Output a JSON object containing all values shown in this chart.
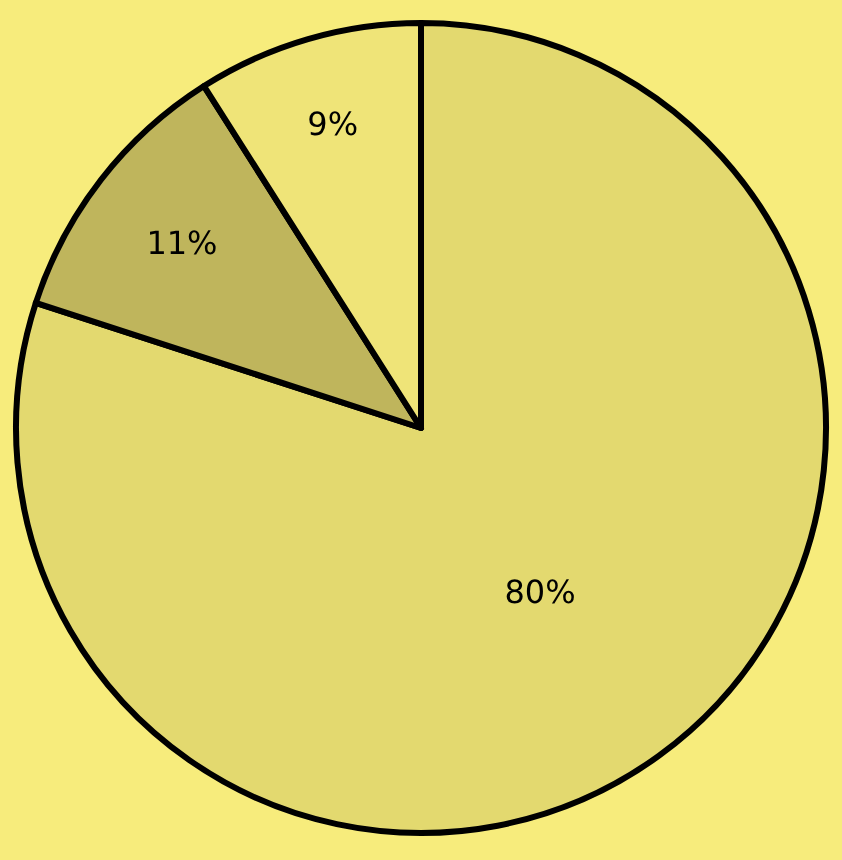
{
  "chart_data": {
    "type": "pie",
    "categories": [
      null,
      null,
      null
    ],
    "values": [
      80,
      11,
      9
    ],
    "value_labels": [
      "80%",
      "11%",
      "9%"
    ],
    "colors": [
      "#e3d96f",
      "#bfb55c",
      "#efe478"
    ],
    "legend": false
  }
}
